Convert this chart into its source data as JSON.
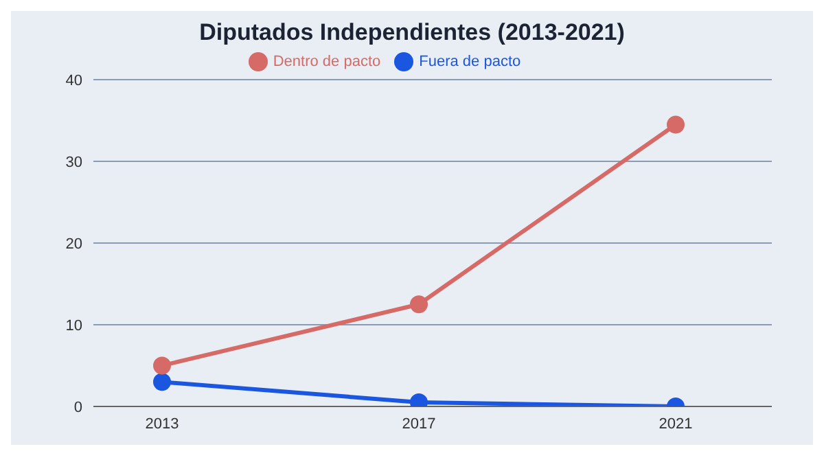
{
  "chart_data": {
    "type": "line",
    "title": "Diputados Independientes (2013-2021)",
    "categories": [
      "2013",
      "2017",
      "2021"
    ],
    "series": [
      {
        "name": "Fuera de pacto",
        "color": "#1a56e0",
        "values": [
          3,
          0.5,
          0
        ]
      },
      {
        "name": "Dentro de pacto",
        "color": "#d66a66",
        "values": [
          5,
          12.5,
          34.5
        ]
      }
    ],
    "ylim": [
      0,
      40
    ],
    "yticks": [
      0,
      10,
      20,
      30,
      40
    ],
    "grid": "y",
    "legend": "top",
    "marker": "circle",
    "line_style": "solid"
  }
}
